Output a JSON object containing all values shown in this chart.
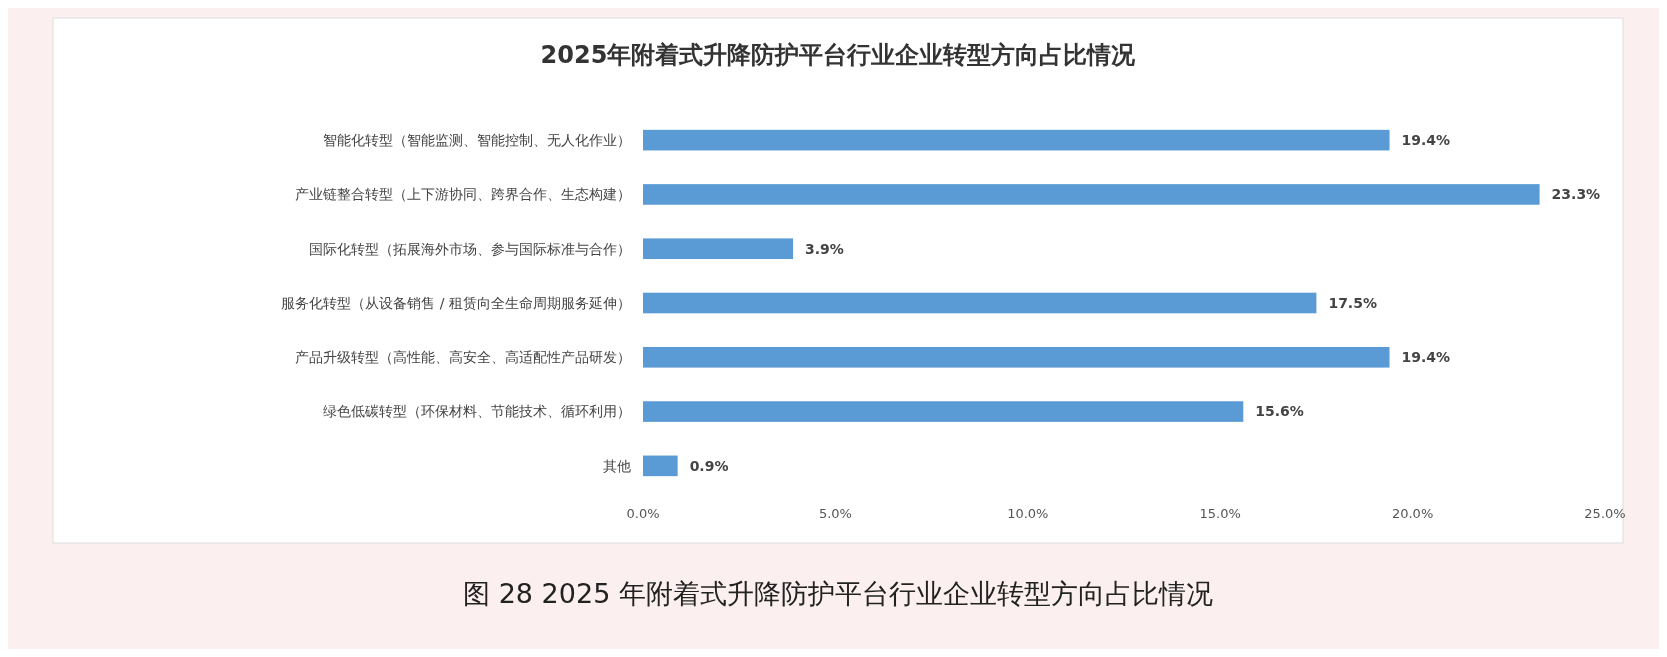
{
  "chart_data": {
    "type": "bar",
    "orientation": "horizontal",
    "title": "2025年附着式升降防护平台行业企业转型方向占比情况",
    "categories": [
      "智能化转型（智能监测、智能控制、无人化作业）",
      "产业链整合转型（上下游协同、跨界合作、生态构建）",
      "国际化转型（拓展海外市场、参与国际标准与合作）",
      "服务化转型（从设备销售 / 租赁向全生命周期服务延伸）",
      "产品升级转型（高性能、高安全、高适配性产品研发）",
      "绿色低碳转型（环保材料、节能技术、循环利用）",
      "其他"
    ],
    "values": [
      19.4,
      23.3,
      3.9,
      17.5,
      19.4,
      15.6,
      0.9
    ],
    "value_labels": [
      "19.4%",
      "23.3%",
      "3.9%",
      "17.5%",
      "19.4%",
      "15.6%",
      "0.9%"
    ],
    "color": "#5b9bd5",
    "xlim": [
      0,
      25
    ],
    "xticks": [
      {
        "value": 0,
        "label": "0.0%"
      },
      {
        "value": 5,
        "label": "5.0%"
      },
      {
        "value": 10,
        "label": "10.0%"
      },
      {
        "value": 15,
        "label": "15.0%"
      },
      {
        "value": 20,
        "label": "20.0%"
      },
      {
        "value": 25,
        "label": "25.0%"
      }
    ],
    "annotations": [
      "图 28  2025 年附着式升降防护平台行业企业转型方向占比情况"
    ]
  }
}
